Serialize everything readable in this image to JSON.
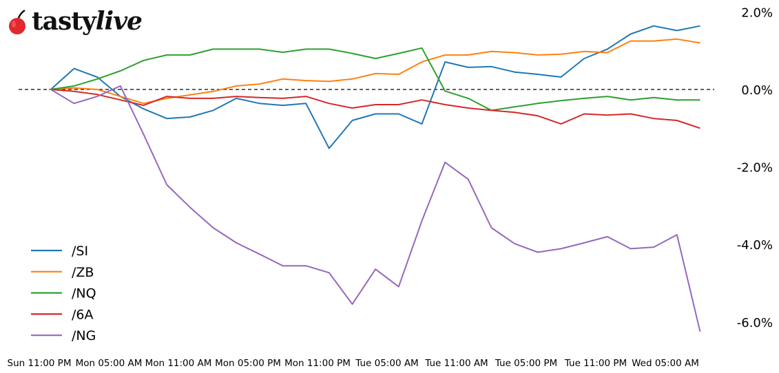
{
  "logo": {
    "text_a": "tasty",
    "text_b": "live"
  },
  "chart_data": {
    "type": "line",
    "title": "",
    "xlabel": "",
    "ylabel": "",
    "y_unit": "%",
    "ylim": [
      -6.3,
      2.2
    ],
    "y_ticks": [
      "2.0%",
      "0.0%",
      "-2.0%",
      "-4.0%",
      "-6.0%"
    ],
    "y_tick_values": [
      2,
      0,
      -2,
      -4,
      -6
    ],
    "y_axis_side": "right",
    "x_ticks": [
      "Sun 11:00 PM",
      "Mon 05:00 AM",
      "Mon 11:00 AM",
      "Mon 05:00 PM",
      "Mon 11:00 PM",
      "Tue 05:00 AM",
      "Tue 11:00 AM",
      "Tue 05:00 PM",
      "Tue 11:00 PM",
      "Wed 05:00 AM"
    ],
    "reference_line": {
      "y": 0,
      "style": "dashed",
      "color": "#000000"
    },
    "grid": false,
    "legend_position": "lower-left",
    "x": [
      "Mon 12:00 AM",
      "Mon 02:00 AM",
      "Mon 04:00 AM",
      "Mon 06:00 AM",
      "Mon 08:00 AM",
      "Mon 10:00 AM",
      "Mon 12:00 PM",
      "Mon 02:00 PM",
      "Mon 04:00 PM",
      "Mon 06:00 PM",
      "Mon 08:00 PM",
      "Mon 10:00 PM",
      "Tue 12:00 AM",
      "Tue 02:00 AM",
      "Tue 04:00 AM",
      "Tue 06:00 AM",
      "Tue 08:00 AM",
      "Tue 10:00 AM",
      "Tue 12:00 PM",
      "Tue 02:00 PM",
      "Tue 04:00 PM",
      "Tue 06:00 PM",
      "Tue 08:00 PM",
      "Tue 10:00 PM",
      "Wed 12:00 AM",
      "Wed 02:00 AM",
      "Wed 04:00 AM",
      "Wed 06:00 AM",
      "Wed 08:00 AM"
    ],
    "series": [
      {
        "name": "/SI",
        "color": "#1f77b4",
        "values": [
          0,
          0.54,
          0.32,
          -0.18,
          -0.5,
          -0.75,
          -0.71,
          -0.54,
          -0.23,
          -0.36,
          -0.41,
          -0.36,
          -1.52,
          -0.8,
          -0.63,
          -0.63,
          -0.89,
          0.71,
          0.57,
          0.59,
          0.45,
          0.39,
          0.32,
          0.8,
          1.04,
          1.43,
          1.64,
          1.52,
          1.64
        ]
      },
      {
        "name": "/ZB",
        "color": "#ff7f0e",
        "values": [
          0,
          0.04,
          0,
          -0.18,
          -0.36,
          -0.23,
          -0.14,
          -0.05,
          0.09,
          0.14,
          0.27,
          0.23,
          0.21,
          0.27,
          0.41,
          0.39,
          0.71,
          0.89,
          0.89,
          0.98,
          0.95,
          0.89,
          0.91,
          0.98,
          0.95,
          1.25,
          1.25,
          1.3,
          1.2
        ]
      },
      {
        "name": "/NQ",
        "color": "#2ca02c",
        "values": [
          0,
          0.09,
          0.27,
          0.48,
          0.75,
          0.89,
          0.89,
          1.04,
          1.04,
          1.04,
          0.96,
          1.04,
          1.04,
          0.93,
          0.8,
          0.93,
          1.07,
          -0.04,
          -0.23,
          -0.54,
          -0.45,
          -0.36,
          -0.29,
          -0.23,
          -0.18,
          -0.27,
          -0.21,
          -0.27,
          -0.27
        ]
      },
      {
        "name": "/6A",
        "color": "#d62728",
        "values": [
          0,
          -0.05,
          -0.13,
          -0.27,
          -0.41,
          -0.18,
          -0.23,
          -0.23,
          -0.18,
          -0.21,
          -0.23,
          -0.18,
          -0.36,
          -0.48,
          -0.39,
          -0.39,
          -0.27,
          -0.39,
          -0.48,
          -0.54,
          -0.59,
          -0.68,
          -0.89,
          -0.63,
          -0.66,
          -0.63,
          -0.75,
          -0.8,
          -1.0
        ]
      },
      {
        "name": "/NG",
        "color": "#9467bd",
        "values": [
          0,
          -0.36,
          -0.18,
          0.09,
          -1.16,
          -2.46,
          -3.04,
          -3.57,
          -3.96,
          -4.25,
          -4.55,
          -4.55,
          -4.73,
          -5.54,
          -4.64,
          -5.09,
          -3.39,
          -1.88,
          -2.32,
          -3.57,
          -3.98,
          -4.2,
          -4.11,
          -3.96,
          -3.8,
          -4.11,
          -4.07,
          -3.75,
          -6.25
        ]
      }
    ]
  }
}
